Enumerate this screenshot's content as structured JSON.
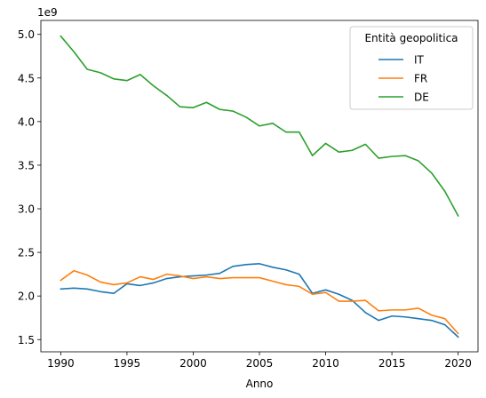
{
  "chart_data": {
    "type": "line",
    "xlabel": "Anno",
    "ylabel": "",
    "y_multiplier_label": "1e9",
    "xlim": [
      1988.5,
      2021.5
    ],
    "ylim": [
      1360000000.0,
      5160000000.0
    ],
    "xticks": [
      1990,
      1995,
      2000,
      2005,
      2010,
      2015,
      2020
    ],
    "yticks": [
      1500000000.0,
      2000000000.0,
      2500000000.0,
      3000000000.0,
      3500000000.0,
      4000000000.0,
      4500000000.0,
      5000000000.0
    ],
    "ytick_labels": [
      "1.5",
      "2.0",
      "2.5",
      "3.0",
      "3.5",
      "4.0",
      "4.5",
      "5.0"
    ],
    "grid": false,
    "legend": {
      "title": "Entità geopolitica",
      "placement": "top-right"
    },
    "x": [
      1990,
      1991,
      1992,
      1993,
      1994,
      1995,
      1996,
      1997,
      1998,
      1999,
      2000,
      2001,
      2002,
      2003,
      2004,
      2005,
      2006,
      2007,
      2008,
      2009,
      2010,
      2011,
      2012,
      2013,
      2014,
      2015,
      2016,
      2017,
      2018,
      2019,
      2020
    ],
    "series": [
      {
        "name": "IT",
        "color": "#1f77b4",
        "values": [
          2080000000.0,
          2090000000.0,
          2080000000.0,
          2050000000.0,
          2030000000.0,
          2140000000.0,
          2120000000.0,
          2150000000.0,
          2200000000.0,
          2220000000.0,
          2230000000.0,
          2240000000.0,
          2260000000.0,
          2340000000.0,
          2360000000.0,
          2370000000.0,
          2330000000.0,
          2300000000.0,
          2250000000.0,
          2030000000.0,
          2070000000.0,
          2020000000.0,
          1950000000.0,
          1810000000.0,
          1720000000.0,
          1770000000.0,
          1760000000.0,
          1740000000.0,
          1720000000.0,
          1670000000.0,
          1530000000.0
        ]
      },
      {
        "name": "FR",
        "color": "#ff7f0e",
        "values": [
          2180000000.0,
          2290000000.0,
          2240000000.0,
          2160000000.0,
          2130000000.0,
          2150000000.0,
          2220000000.0,
          2190000000.0,
          2250000000.0,
          2230000000.0,
          2200000000.0,
          2220000000.0,
          2200000000.0,
          2210000000.0,
          2210000000.0,
          2210000000.0,
          2170000000.0,
          2130000000.0,
          2110000000.0,
          2020000000.0,
          2040000000.0,
          1940000000.0,
          1940000000.0,
          1950000000.0,
          1830000000.0,
          1840000000.0,
          1840000000.0,
          1860000000.0,
          1780000000.0,
          1740000000.0,
          1570000000.0
        ]
      },
      {
        "name": "DE",
        "color": "#2ca02c",
        "values": [
          4980000000.0,
          4800000000.0,
          4600000000.0,
          4560000000.0,
          4490000000.0,
          4470000000.0,
          4540000000.0,
          4410000000.0,
          4300000000.0,
          4170000000.0,
          4160000000.0,
          4220000000.0,
          4140000000.0,
          4120000000.0,
          4050000000.0,
          3950000000.0,
          3980000000.0,
          3880000000.0,
          3880000000.0,
          3610000000.0,
          3750000000.0,
          3650000000.0,
          3670000000.0,
          3740000000.0,
          3580000000.0,
          3600000000.0,
          3610000000.0,
          3550000000.0,
          3410000000.0,
          3200000000.0,
          2920000000.0
        ]
      }
    ]
  }
}
